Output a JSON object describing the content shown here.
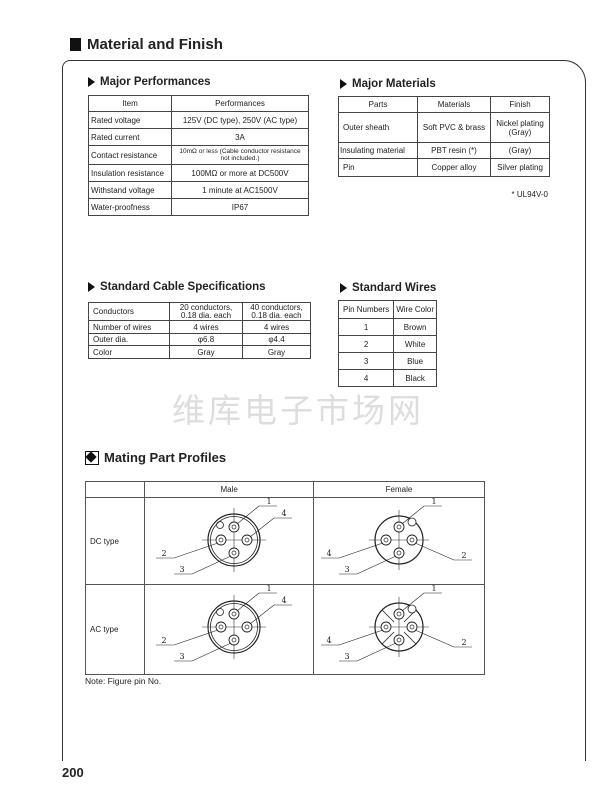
{
  "section_title": "Material and Finish",
  "major_performances": {
    "title": "Major Performances",
    "headers": [
      "Item",
      "Performances"
    ],
    "rows": [
      [
        "Rated voltage",
        "125V (DC type), 250V (AC type)"
      ],
      [
        "Rated current",
        "3A"
      ],
      [
        "Contact resistance",
        "10mΩ or less (Cable conductor resistance not included.)"
      ],
      [
        "Insulation resistance",
        "100MΩ or more at DC500V"
      ],
      [
        "Withstand voltage",
        "1 minute at AC1500V"
      ],
      [
        "Water-proofness",
        "IP67"
      ]
    ]
  },
  "major_materials": {
    "title": "Major Materials",
    "headers": [
      "Parts",
      "Materials",
      "Finish"
    ],
    "rows": [
      [
        "Outer sheath",
        "Soft PVC & brass",
        "Nickel plating (Gray)"
      ],
      [
        "Insulating material",
        "PBT resin (*)",
        "(Gray)"
      ],
      [
        "Pin",
        "Copper alloy",
        "Silver plating"
      ]
    ],
    "footnote": "* UL94V-0"
  },
  "cable_specs": {
    "title": "Standard Cable Specifications",
    "rows": [
      [
        "Conductors",
        "20 conductors, 0.18 dia. each",
        "40 conductors, 0.18 dia. each"
      ],
      [
        "Number of wires",
        "4 wires",
        "4 wires"
      ],
      [
        "Outer dia.",
        "φ6.8",
        "φ4.4"
      ],
      [
        "Color",
        "Gray",
        "Gray"
      ]
    ]
  },
  "standard_wires": {
    "title": "Standard Wires",
    "headers": [
      "Pin Numbers",
      "Wire Color"
    ],
    "rows": [
      [
        "1",
        "Brown"
      ],
      [
        "2",
        "White"
      ],
      [
        "3",
        "Blue"
      ],
      [
        "4",
        "Black"
      ]
    ]
  },
  "watermark": "维库电子市场网",
  "mating": {
    "title": "Mating Part Profiles",
    "headers": [
      "",
      "Male",
      "Female"
    ],
    "rows": [
      {
        "label": "DC type"
      },
      {
        "label": "AC type"
      }
    ],
    "pins": [
      "1",
      "2",
      "3",
      "4"
    ],
    "note": "Note: Figure pin No."
  },
  "page_number": "200"
}
